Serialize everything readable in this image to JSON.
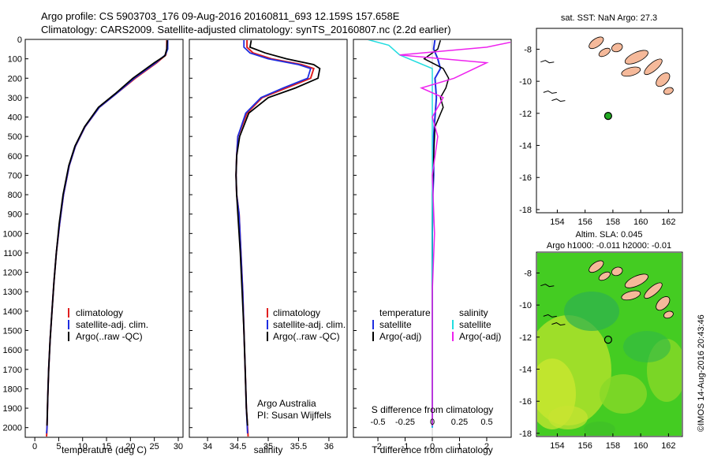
{
  "header": {
    "line1": "Argo profile: CS 5903703_176 09-Aug-2016 20160811_693 12.159S 157.658E",
    "line2": "Climatology: CARS2009. Satellite-adjusted climatology: synTS_20160807.nc (2.2d earlier)"
  },
  "colors": {
    "climatology": "#e02020",
    "satellite_clim": "#1e2ee0",
    "argo": "#000000",
    "salinity_satellite": "#22dde0",
    "salinity_argo": "#ee22ee",
    "land": "#f5b99a",
    "marker": "#22aa22"
  },
  "depth_axis": {
    "ticks": [
      "0",
      "100",
      "200",
      "300",
      "400",
      "500",
      "600",
      "700",
      "800",
      "900",
      "1000",
      "1100",
      "1200",
      "1300",
      "1400",
      "1500",
      "1600",
      "1700",
      "1800",
      "1900",
      "2000"
    ],
    "min": 0,
    "max": 2050
  },
  "chart_data": [
    {
      "type": "line",
      "name": "temperature-profile",
      "xlabel": "temperature (deg C)",
      "xticks": [
        "0",
        "5",
        "10",
        "15",
        "20",
        "25",
        "30"
      ],
      "xlim": [
        -2,
        31
      ],
      "ylim": [
        2050,
        0
      ],
      "legend": [
        "climatology",
        "satellite-adj. clim.",
        "Argo(..raw -QC)"
      ],
      "series": [
        {
          "name": "climatology",
          "x": [
            27.6,
            27.6,
            27.4,
            25.5,
            21.0,
            17.0,
            13.5,
            10.5,
            8.5,
            7.2,
            6.0,
            5.2,
            4.5,
            4.0,
            3.6,
            3.2,
            2.9,
            2.7,
            2.55,
            2.45
          ],
          "y": [
            0,
            50,
            80,
            120,
            200,
            280,
            350,
            450,
            550,
            650,
            800,
            950,
            1100,
            1250,
            1400,
            1550,
            1700,
            1850,
            2000,
            2050
          ]
        },
        {
          "name": "satellite-adj. clim.",
          "x": [
            27.8,
            27.8,
            27.3,
            25.3,
            20.8,
            17.0,
            13.5,
            10.5,
            8.5,
            7.2,
            6.0,
            5.2,
            4.5,
            4.0,
            3.6,
            3.2,
            2.9,
            2.7,
            2.55,
            2.45
          ],
          "y": [
            0,
            50,
            80,
            120,
            200,
            280,
            350,
            450,
            550,
            650,
            800,
            950,
            1100,
            1250,
            1400,
            1550,
            1700,
            1850,
            2000,
            2030
          ]
        },
        {
          "name": "Argo(..raw -QC)",
          "x": [
            27.7,
            27.6,
            27.2,
            25.0,
            20.5,
            16.8,
            13.3,
            10.4,
            8.4,
            7.1,
            5.9,
            5.1,
            4.5,
            4.0,
            3.6,
            3.2,
            2.9,
            2.7,
            2.55
          ],
          "y": [
            5,
            50,
            85,
            120,
            200,
            280,
            350,
            450,
            550,
            650,
            800,
            950,
            1100,
            1250,
            1400,
            1550,
            1700,
            1850,
            1990
          ]
        }
      ]
    },
    {
      "type": "line",
      "name": "salinity-profile",
      "xlabel": "salinity",
      "xticks": [
        "34",
        "34.5",
        "35",
        "35.5",
        "36"
      ],
      "xlim": [
        33.7,
        36.3
      ],
      "ylim": [
        2050,
        0
      ],
      "legend": [
        "climatology",
        "satellite-adj. clim.",
        "Argo(..raw -QC)"
      ],
      "annotation": [
        "Argo Australia",
        "PI: Susan Wijffels"
      ],
      "series": [
        {
          "name": "climatology",
          "x": [
            34.65,
            34.65,
            34.75,
            35.05,
            35.55,
            35.75,
            35.7,
            35.3,
            34.9,
            34.65,
            34.5,
            34.48,
            34.47,
            34.48,
            34.52,
            34.55,
            34.58,
            34.6,
            34.62,
            34.64,
            34.66,
            34.67
          ],
          "y": [
            0,
            40,
            70,
            100,
            130,
            150,
            200,
            250,
            300,
            380,
            500,
            600,
            700,
            800,
            900,
            1100,
            1300,
            1500,
            1700,
            1900,
            2000,
            2050
          ]
        },
        {
          "name": "satellite-adj. clim.",
          "x": [
            34.6,
            34.6,
            34.7,
            35.0,
            35.5,
            35.7,
            35.65,
            35.25,
            34.88,
            34.63,
            34.5,
            34.48,
            34.47,
            34.48,
            34.52,
            34.55,
            34.58,
            34.6,
            34.62,
            34.64,
            34.66
          ],
          "y": [
            0,
            40,
            70,
            100,
            130,
            150,
            200,
            250,
            300,
            380,
            500,
            600,
            700,
            800,
            900,
            1100,
            1300,
            1500,
            1700,
            1900,
            2030
          ]
        },
        {
          "name": "Argo(..raw -QC)",
          "x": [
            34.72,
            34.7,
            34.95,
            35.3,
            35.75,
            35.85,
            35.82,
            35.45,
            35.0,
            34.68,
            34.53,
            34.48,
            34.47,
            34.48,
            34.5,
            34.54,
            34.57,
            34.6,
            34.62,
            34.64,
            34.66
          ],
          "y": [
            5,
            40,
            70,
            100,
            130,
            150,
            200,
            250,
            300,
            380,
            500,
            600,
            700,
            800,
            900,
            1100,
            1300,
            1500,
            1700,
            1900,
            1990
          ]
        }
      ]
    },
    {
      "type": "line",
      "name": "difference-profile",
      "xlabel": "T difference from climatology",
      "x2label": "S difference from climatology",
      "xticks": [
        "-2",
        "-1",
        "0",
        "1",
        "2"
      ],
      "x2ticks": [
        "-0.5",
        "-0.25",
        "0",
        "0.25",
        "0.5"
      ],
      "xlim": [
        -2.9,
        2.9
      ],
      "ylim": [
        2050,
        0
      ],
      "legend_temperature": [
        "temperature",
        "satellite",
        "Argo(-adj)"
      ],
      "legend_salinity": [
        "salinity",
        "satellite",
        "Argo(-adj)"
      ],
      "series": [
        {
          "name": "temperature satellite",
          "x": [
            0.1,
            0.05,
            0.2,
            0.3,
            0.1,
            0.15,
            0.1,
            0.05,
            0.05,
            0.05,
            0.02,
            0.0,
            0.0,
            0.0,
            0.0,
            0.0
          ],
          "y": [
            0,
            50,
            100,
            150,
            200,
            300,
            400,
            500,
            600,
            700,
            800,
            1000,
            1200,
            1500,
            1800,
            2000
          ]
        },
        {
          "name": "temperature Argo(-adj)",
          "x": [
            0.3,
            0.2,
            -0.3,
            0.4,
            0.6,
            0.5,
            0.3,
            0.4,
            0.1,
            0.05,
            0.0,
            0.0,
            0.0,
            0.0,
            0.0
          ],
          "y": [
            5,
            50,
            100,
            150,
            200,
            250,
            300,
            350,
            450,
            600,
            800,
            1000,
            1300,
            1600,
            1990
          ]
        },
        {
          "name": "salinity satellite",
          "x": [
            -0.6,
            -0.4,
            -0.3,
            0.0,
            0.0,
            0.0,
            0.0,
            0.0,
            0.0,
            0.0,
            0.0,
            0.0
          ],
          "y": [
            0,
            30,
            80,
            150,
            200,
            300,
            500,
            700,
            900,
            1200,
            1500,
            2000
          ]
        },
        {
          "name": "salinity Argo(-adj)",
          "x": [
            0.8,
            0.5,
            -0.3,
            0.5,
            0.2,
            -0.1,
            0.1,
            0.0,
            0.05,
            0.0,
            0.02,
            0.0,
            0.0,
            0.0
          ],
          "y": [
            5,
            40,
            80,
            120,
            200,
            250,
            300,
            400,
            500,
            700,
            1000,
            1300,
            1600,
            1990
          ]
        }
      ]
    },
    {
      "type": "scatter",
      "name": "sst-map",
      "title": "sat. SST: NaN Argo: 27.3",
      "xticks": [
        "154",
        "156",
        "158",
        "160",
        "162"
      ],
      "yticks": [
        "-8",
        "-10",
        "-12",
        "-14",
        "-16",
        "-18"
      ],
      "xlim": [
        152.5,
        163
      ],
      "ylim": [
        -18.2,
        -6.7
      ],
      "points": [
        {
          "x": 157.658,
          "y": -12.159
        }
      ]
    },
    {
      "type": "heatmap",
      "name": "sla-map",
      "title": "Altim. SLA: 0.045",
      "subtitle": "Argo h1000: -0.011 h2000: -0.01",
      "xticks": [
        "154",
        "156",
        "158",
        "160",
        "162"
      ],
      "yticks": [
        "-8",
        "-10",
        "-12",
        "-14",
        "-16",
        "-18"
      ],
      "xlim": [
        152.5,
        163
      ],
      "ylim": [
        -18.2,
        -6.7
      ],
      "points": [
        {
          "x": 157.658,
          "y": -12.159
        }
      ]
    }
  ],
  "credit": "©IMOS 14-Aug-2016 20:43:46"
}
